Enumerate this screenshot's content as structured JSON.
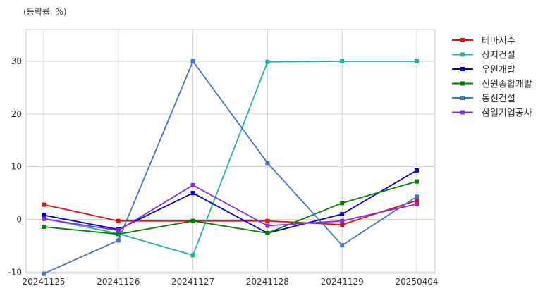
{
  "chart_data": {
    "type": "line",
    "unit_label": "(등락률, %)",
    "x": [
      "20241125",
      "20241126",
      "20241127",
      "20241128",
      "20241129",
      "20250404"
    ],
    "y_ticks": [
      -10,
      0,
      10,
      20,
      30
    ],
    "ylim": [
      -10.3,
      36
    ],
    "grid": true,
    "legend_position": "right",
    "series": [
      {
        "name": "테마지수",
        "color": "#dd1111",
        "values": [
          2.8,
          -0.3,
          -0.3,
          -0.3,
          -1.0,
          3.6
        ]
      },
      {
        "name": "상지건설",
        "color": "#20b2aa",
        "values": [
          0.2,
          -2.7,
          -6.8,
          29.9,
          30.0,
          30.0
        ]
      },
      {
        "name": "우원개발",
        "color": "#0000cc",
        "values": [
          0.8,
          -1.9,
          5.0,
          -2.6,
          1.0,
          9.3
        ]
      },
      {
        "name": "신원종합개발",
        "color": "#008000",
        "values": [
          -1.4,
          -2.8,
          -0.3,
          -2.6,
          3.1,
          7.2
        ]
      },
      {
        "name": "동신건설",
        "color": "#4472c4",
        "values": [
          -10.3,
          -4.0,
          30.0,
          10.7,
          -4.9,
          4.3
        ]
      },
      {
        "name": "삼일기업공사",
        "color": "#8a2be2",
        "values": [
          0.1,
          -2.1,
          6.5,
          -1.2,
          -0.3,
          2.9
        ]
      }
    ]
  }
}
